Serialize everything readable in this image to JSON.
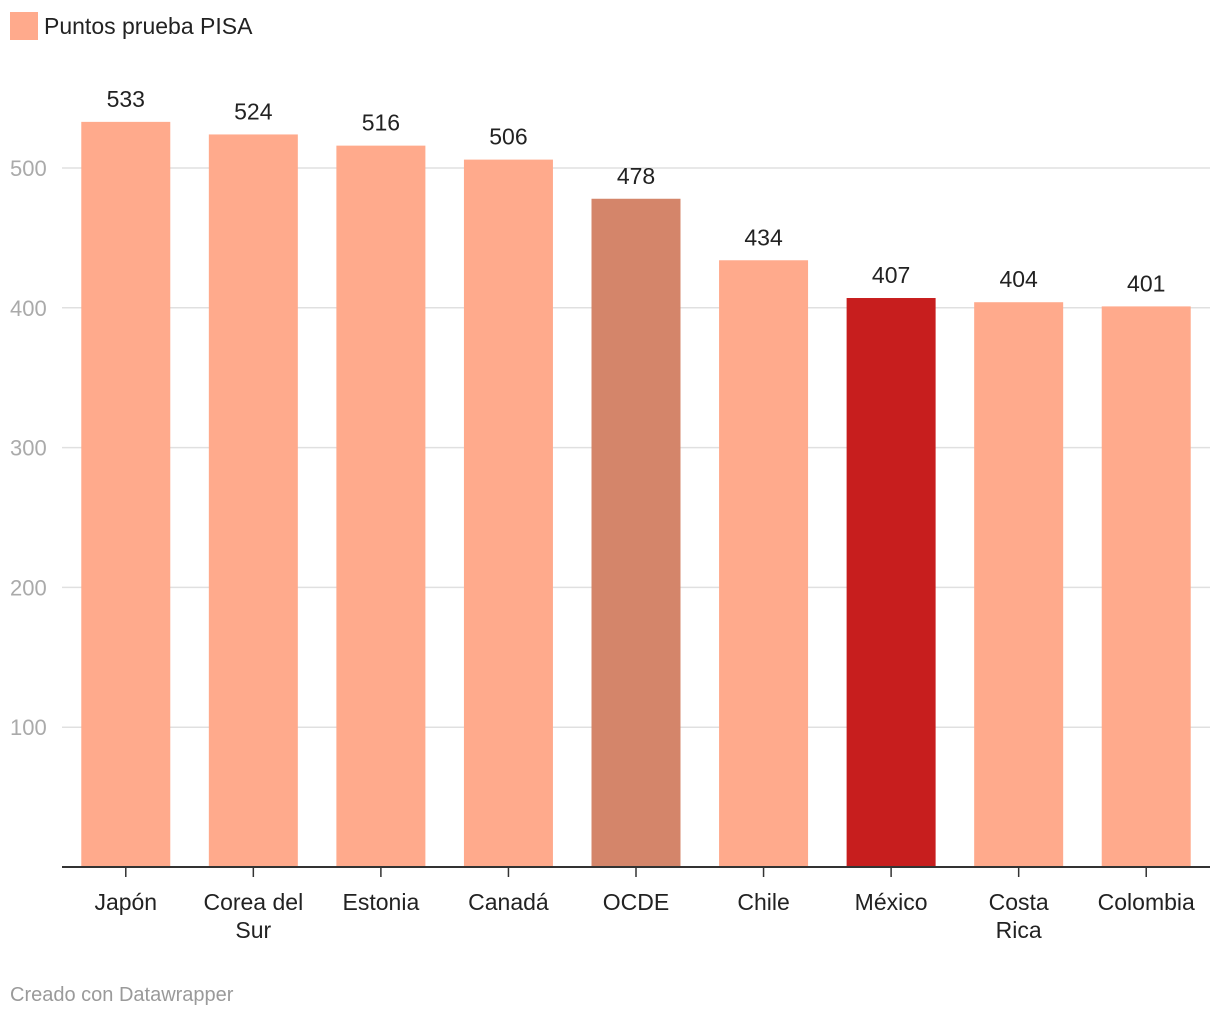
{
  "legend": {
    "label": "Puntos prueba PISA",
    "color": "#ffaa8c"
  },
  "credit": "Creado con Datawrapper",
  "colors": {
    "default": "#ffaa8c",
    "oecd": "#d4856a",
    "mexico": "#c71e1e",
    "grid": "#e0e0e0",
    "axis": "#333333",
    "tick_label": "#aaaaaa"
  },
  "chart_data": {
    "type": "bar",
    "categories": [
      [
        "Japón"
      ],
      [
        "Corea del",
        "Sur"
      ],
      [
        "Estonia"
      ],
      [
        "Canadá"
      ],
      [
        "OCDE"
      ],
      [
        "Chile"
      ],
      [
        "México"
      ],
      [
        "Costa",
        "Rica"
      ],
      [
        "Colombia"
      ]
    ],
    "series": [
      {
        "name": "Puntos prueba PISA",
        "values": [
          533,
          524,
          516,
          506,
          478,
          434,
          407,
          404,
          401
        ]
      }
    ],
    "highlight": [
      "default",
      "default",
      "default",
      "default",
      "oecd",
      "default",
      "mexico",
      "default",
      "default"
    ],
    "yticks": [
      100,
      200,
      300,
      400,
      500
    ],
    "ylim": [
      0,
      533
    ],
    "grid": true,
    "legend_position": "top-left"
  }
}
